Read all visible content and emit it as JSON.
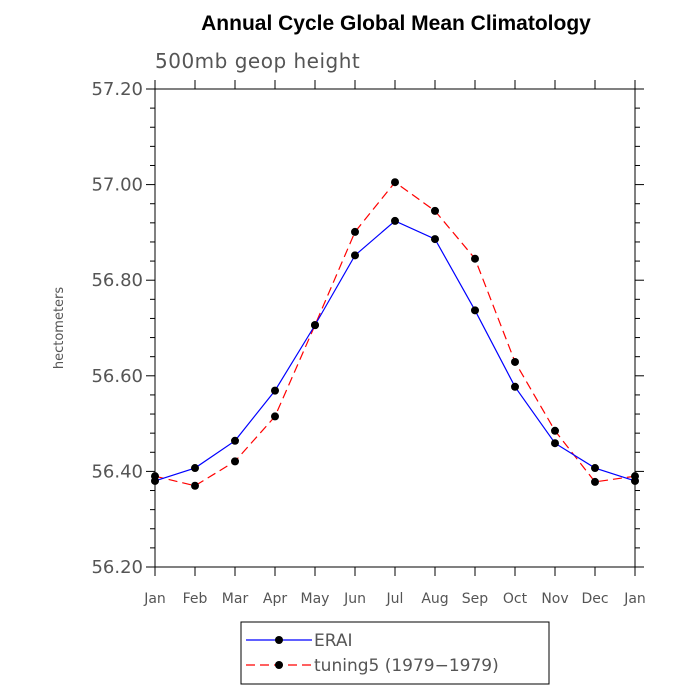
{
  "chart_data": {
    "type": "line",
    "title": "Annual Cycle Global Mean Climatology",
    "subtitle": "500mb geop height",
    "ylabel": "hectometers",
    "xlabel": "",
    "categories": [
      "Jan",
      "Feb",
      "Mar",
      "Apr",
      "May",
      "Jun",
      "Jul",
      "Aug",
      "Sep",
      "Oct",
      "Nov",
      "Dec",
      "Jan"
    ],
    "ylim": [
      56.2,
      57.2
    ],
    "yticks": [
      "56.20",
      "56.40",
      "56.60",
      "56.80",
      "57.00",
      "57.20"
    ],
    "series": [
      {
        "name": "ERAI",
        "color": "#0000ff",
        "line_style": "solid",
        "marker": "filled-circle",
        "values": [
          56.38,
          56.407,
          56.464,
          56.569,
          56.706,
          56.852,
          56.924,
          56.886,
          56.737,
          56.577,
          56.459,
          56.407,
          56.38
        ]
      },
      {
        "name": "tuning5 (1979−1979)",
        "color": "#ff0000",
        "line_style": "dashed",
        "marker": "filled-circle",
        "values": [
          56.39,
          56.37,
          56.421,
          56.515,
          56.706,
          56.901,
          57.005,
          56.945,
          56.845,
          56.629,
          56.485,
          56.378,
          56.39
        ]
      }
    ],
    "legend_position": "bottom-center",
    "grid": false
  }
}
